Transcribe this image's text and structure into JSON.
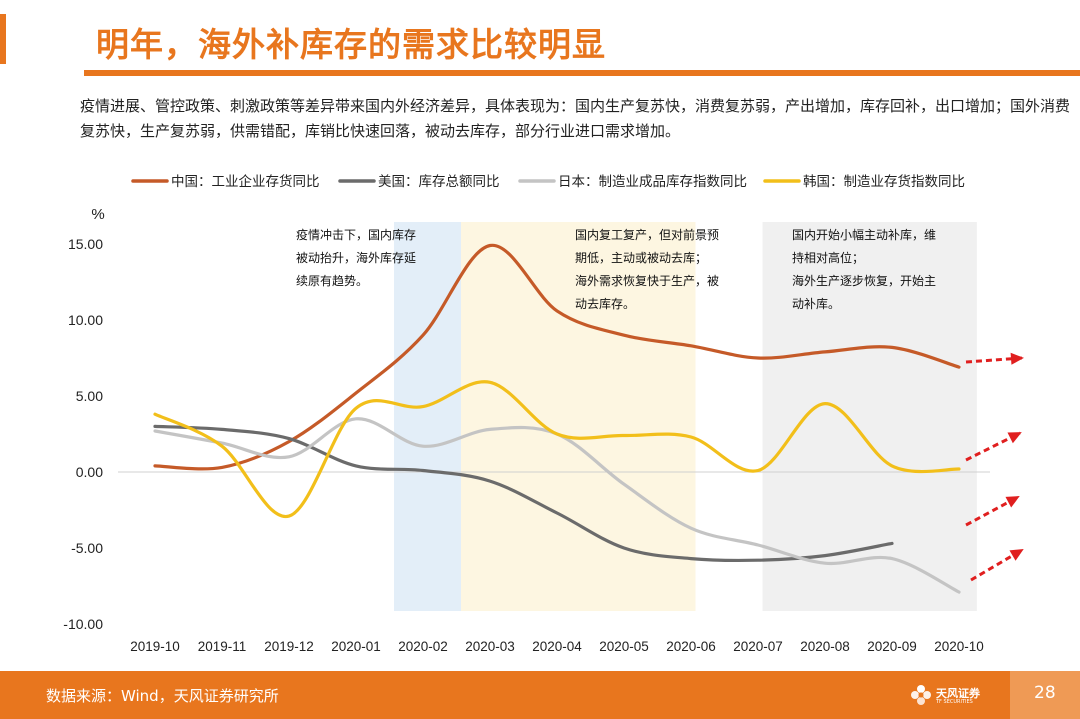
{
  "slide": {
    "title": "明年，海外补库存的需求比较明显",
    "description": "疫情进展、管控政策、刺激政策等差异带来国内外经济差异，具体表现为：国内生产复苏快，消费复苏弱，产出增加，库存回补，出口增加；国外消费复苏快，生产复苏弱，供需错配，库销比快速回落，被动去库存，部分行业进口需求增加。",
    "source": "数据来源：Wind，天风证券研究所",
    "page_number": "28",
    "logo_text": "天风证券",
    "logo_subtext": "TF SECURITIES"
  },
  "colors": {
    "accent": "#e8761e",
    "china": "#c55a28",
    "usa": "#6b6b6b",
    "japan": "#c4c4c4",
    "korea": "#f2bf1a",
    "band_blue": "#e3eef8",
    "band_yellow": "#fdf6e1",
    "band_gray": "#f0f0f0",
    "arrow": "#e01f1f"
  },
  "chart_data": {
    "type": "line",
    "ylabel": "%",
    "ylim": [
      -10,
      15
    ],
    "yticks": [
      "15.00",
      "10.00",
      "5.00",
      "0.00",
      "-5.00",
      "-10.00"
    ],
    "ytick_values": [
      15,
      10,
      5,
      0,
      -5,
      -10
    ],
    "categories": [
      "2019-10",
      "2019-11",
      "2019-12",
      "2020-01",
      "2020-02",
      "2020-03",
      "2020-04",
      "2020-05",
      "2020-06",
      "2020-07",
      "2020-08",
      "2020-09",
      "2020-10"
    ],
    "legend_position": "top",
    "series": [
      {
        "name": "中国：工业企业存货同比",
        "color_key": "china",
        "values": [
          0.4,
          0.3,
          2.0,
          5.2,
          9.0,
          14.9,
          10.6,
          9.0,
          8.3,
          7.5,
          7.9,
          8.2,
          6.9
        ]
      },
      {
        "name": "美国：库存总额同比",
        "color_key": "usa",
        "values": [
          3.0,
          2.8,
          2.2,
          0.4,
          0.1,
          -0.6,
          -2.7,
          -5.0,
          -5.7,
          -5.8,
          -5.5,
          -4.7,
          null
        ]
      },
      {
        "name": "日本：制造业成品库存指数同比",
        "color_key": "japan",
        "values": [
          2.7,
          1.9,
          1.0,
          3.5,
          1.7,
          2.8,
          2.5,
          -0.8,
          -3.7,
          -4.8,
          -6.0,
          -5.7,
          -7.9
        ]
      },
      {
        "name": "韩国：制造业存货指数同比",
        "color_key": "korea",
        "values": [
          3.8,
          1.7,
          -2.9,
          4.2,
          4.3,
          5.9,
          2.5,
          2.4,
          2.3,
          0.1,
          4.5,
          0.4,
          0.2
        ]
      }
    ],
    "bands": [
      {
        "from": 4,
        "to": 5,
        "color_key": "band_blue"
      },
      {
        "from": 5,
        "to": 8.5,
        "color_key": "band_yellow"
      },
      {
        "from": 9.5,
        "to": 12.7,
        "color_key": "band_gray"
      }
    ],
    "annotations": [
      {
        "lines": [
          "疫情冲击下，国内库存",
          "被动抬升，海外库存延",
          "续原有趋势。"
        ]
      },
      {
        "lines": [
          "国内复工复产，但对前景预",
          "期低，主动或被动去库；",
          "海外需求恢复快于生产，被",
          "动去库存。"
        ]
      },
      {
        "lines": [
          "国内开始小幅主动补库，维",
          "持相对高位；",
          "海外生产逐步恢复，开始主",
          "动补库。"
        ]
      }
    ]
  }
}
